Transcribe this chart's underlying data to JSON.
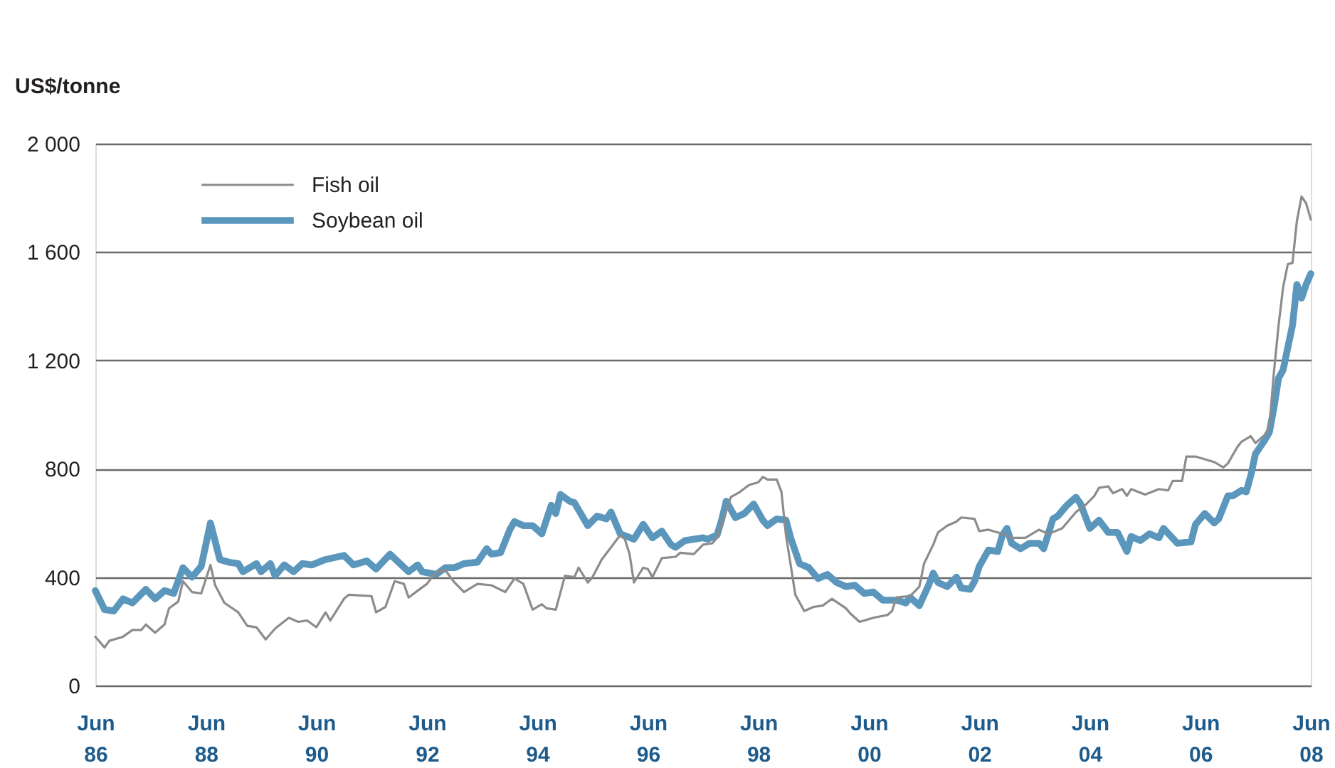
{
  "chart_data": {
    "type": "line",
    "ylabel": "US$/tonne",
    "xlim": [
      "1986-06",
      "2008-06"
    ],
    "xticks": [
      {
        "value": "1986-06",
        "label": "Jun\n86"
      },
      {
        "value": "1988-06",
        "label": "Jun\n88"
      },
      {
        "value": "1990-06",
        "label": "Jun\n90"
      },
      {
        "value": "1992-06",
        "label": "Jun\n92"
      },
      {
        "value": "1994-06",
        "label": "Jun\n94"
      },
      {
        "value": "1996-06",
        "label": "Jun\n96"
      },
      {
        "value": "1998-06",
        "label": "Jun\n98"
      },
      {
        "value": "2000-06",
        "label": "Jun\n00"
      },
      {
        "value": "2002-06",
        "label": "Jun\n02"
      },
      {
        "value": "2004-06",
        "label": "Jun\n04"
      },
      {
        "value": "2006-06",
        "label": "Jun\n06"
      },
      {
        "value": "2008-06",
        "label": "Jun\n08"
      }
    ],
    "ylim": [
      0,
      2000
    ],
    "yticks": [
      0,
      400,
      800,
      {
        "value": 1200,
        "label": "1 200"
      },
      {
        "value": 1600,
        "label": "1 600"
      },
      {
        "value": 2000,
        "label": "2 000"
      }
    ],
    "grid": "y",
    "legend": "top left",
    "series": [
      {
        "name": "Fish oil",
        "color": "#8c8c8c",
        "x": [
          "1986-06",
          "1986-08",
          "1986-09",
          "1986-12",
          "1987-02",
          "1987-04",
          "1987-05",
          "1987-07",
          "1987-09",
          "1987-10",
          "1987-12",
          "1988-01",
          "1988-03",
          "1988-05",
          "1988-07",
          "1988-08",
          "1988-10",
          "1989-01",
          "1989-03",
          "1989-05",
          "1989-07",
          "1989-09",
          "1989-12",
          "1990-02",
          "1990-04",
          "1990-06",
          "1990-08",
          "1990-09",
          "1990-12",
          "1991-01",
          "1991-06",
          "1991-07",
          "1991-09",
          "1991-11",
          "1992-01",
          "1992-02",
          "1992-04",
          "1992-06",
          "1992-08",
          "1992-10",
          "1992-12",
          "1993-02",
          "1993-05",
          "1993-08",
          "1993-11",
          "1994-01",
          "1994-03",
          "1994-05",
          "1994-07",
          "1994-08",
          "1994-10",
          "1994-12",
          "1995-02",
          "1995-03",
          "1995-05",
          "1995-06",
          "1995-08",
          "1995-10",
          "1995-12",
          "1996-01",
          "1996-02",
          "1996-03",
          "1996-05",
          "1996-06",
          "1996-07",
          "1996-09",
          "1996-12",
          "1997-01",
          "1997-04",
          "1997-06",
          "1997-08",
          "1997-09",
          "1997-12",
          "1998-02",
          "1998-04",
          "1998-06",
          "1998-07",
          "1998-08",
          "1998-10",
          "1998-11",
          "1998-12",
          "1999-02",
          "1999-04",
          "1999-06",
          "1999-08",
          "1999-10",
          "2000-01",
          "2000-02",
          "2000-04",
          "2000-07",
          "2000-10",
          "2000-11",
          "2000-12",
          "2001-03",
          "2001-05",
          "2001-06",
          "2001-08",
          "2001-09",
          "2001-11",
          "2002-01",
          "2002-02",
          "2002-05",
          "2002-06",
          "2002-08",
          "2002-10",
          "2002-11",
          "2003-01",
          "2003-04",
          "2003-07",
          "2003-09",
          "2003-12",
          "2004-03",
          "2004-05",
          "2004-07",
          "2004-08",
          "2004-10",
          "2004-11",
          "2005-01",
          "2005-02",
          "2005-03",
          "2005-06",
          "2005-09",
          "2005-11",
          "2005-12",
          "2006-02",
          "2006-03",
          "2006-05",
          "2006-08",
          "2006-09",
          "2006-11",
          "2006-12",
          "2007-02",
          "2007-03",
          "2007-05",
          "2007-06",
          "2007-08",
          "2007-09",
          "2007-10",
          "2007-11",
          "2007-12",
          "2008-01",
          "2008-02",
          "2008-03",
          "2008-04",
          "2008-05",
          "2008-06"
        ],
        "values": [
          180,
          140,
          165,
          180,
          205,
          205,
          225,
          195,
          225,
          285,
          310,
          385,
          345,
          340,
          445,
          370,
          305,
          270,
          220,
          215,
          170,
          210,
          250,
          235,
          240,
          215,
          270,
          240,
          320,
          335,
          330,
          270,
          290,
          385,
          375,
          325,
          350,
          375,
          420,
          425,
          380,
          345,
          375,
          370,
          345,
          395,
          375,
          280,
          300,
          285,
          280,
          405,
          400,
          435,
          380,
          400,
          465,
          510,
          555,
          540,
          485,
          380,
          435,
          430,
          400,
          470,
          475,
          490,
          485,
          520,
          525,
          545,
          695,
          715,
          740,
          750,
          770,
          760,
          760,
          715,
          555,
          335,
          275,
          290,
          295,
          320,
          285,
          265,
          235,
          250,
          260,
          275,
          325,
          330,
          365,
          450,
          520,
          565,
          590,
          605,
          620,
          615,
          570,
          575,
          565,
          560,
          545,
          545,
          575,
          560,
          580,
          640,
          665,
          700,
          730,
          735,
          710,
          725,
          700,
          725,
          705,
          725,
          720,
          755,
          755,
          845,
          845,
          830,
          825,
          805,
          820,
          880,
          900,
          920,
          895,
          925,
          955,
          1155,
          1330,
          1470,
          1555,
          1560,
          1715,
          1805,
          1780,
          1720
        ]
      },
      {
        "name": "Soybean oil",
        "color": "#5b96bd",
        "x": [
          "1986-06",
          "1986-08",
          "1986-10",
          "1986-12",
          "1987-02",
          "1987-05",
          "1987-07",
          "1987-09",
          "1987-11",
          "1988-01",
          "1988-03",
          "1988-05",
          "1988-07",
          "1988-09",
          "1988-11",
          "1989-01",
          "1989-02",
          "1989-05",
          "1989-06",
          "1989-08",
          "1989-09",
          "1989-11",
          "1990-01",
          "1990-03",
          "1990-05",
          "1990-08",
          "1990-12",
          "1991-02",
          "1991-05",
          "1991-07",
          "1991-10",
          "1992-02",
          "1992-04",
          "1992-05",
          "1992-08",
          "1992-10",
          "1992-12",
          "1993-02",
          "1993-05",
          "1993-07",
          "1993-08",
          "1993-10",
          "1993-12",
          "1994-01",
          "1994-03",
          "1994-05",
          "1994-07",
          "1994-09",
          "1994-10",
          "1994-11",
          "1995-01",
          "1995-02",
          "1995-05",
          "1995-07",
          "1995-09",
          "1995-10",
          "1995-12",
          "1996-03",
          "1996-05",
          "1996-07",
          "1996-09",
          "1996-11",
          "1996-12",
          "1997-02",
          "1997-04",
          "1997-06",
          "1997-07",
          "1997-09",
          "1997-10",
          "1997-11",
          "1998-01",
          "1998-03",
          "1998-05",
          "1998-07",
          "1998-08",
          "1998-10",
          "1998-12",
          "1999-01",
          "1999-03",
          "1999-05",
          "1999-07",
          "1999-09",
          "1999-11",
          "2000-01",
          "2000-03",
          "2000-05",
          "2000-07",
          "2000-09",
          "2000-12",
          "2001-02",
          "2001-03",
          "2001-05",
          "2001-07",
          "2001-08",
          "2001-09",
          "2001-11",
          "2002-01",
          "2002-02",
          "2002-04",
          "2002-05",
          "2002-06",
          "2002-08",
          "2002-10",
          "2002-11",
          "2002-12",
          "2003-01",
          "2003-03",
          "2003-05",
          "2003-07",
          "2003-08",
          "2003-10",
          "2003-11",
          "2004-01",
          "2004-03",
          "2004-04",
          "2004-06",
          "2004-08",
          "2004-10",
          "2004-12",
          "2005-02",
          "2005-03",
          "2005-05",
          "2005-07",
          "2005-09",
          "2005-10",
          "2006-01",
          "2006-04",
          "2006-05",
          "2006-07",
          "2006-09",
          "2006-10",
          "2006-12",
          "2007-01",
          "2007-03",
          "2007-04",
          "2007-05",
          "2007-06",
          "2007-08",
          "2007-09",
          "2007-10",
          "2007-11",
          "2007-12",
          "2008-02",
          "2008-03",
          "2008-04",
          "2008-05",
          "2008-06"
        ],
        "values": [
          350,
          280,
          275,
          320,
          305,
          355,
          320,
          350,
          340,
          435,
          400,
          440,
          600,
          465,
          455,
          450,
          420,
          450,
          420,
          450,
          405,
          445,
          420,
          450,
          445,
          465,
          480,
          445,
          460,
          430,
          485,
          420,
          445,
          420,
          410,
          435,
          435,
          450,
          455,
          505,
          485,
          490,
          575,
          605,
          590,
          590,
          560,
          665,
          635,
          705,
          680,
          675,
          590,
          625,
          615,
          640,
          560,
          540,
          595,
          545,
          570,
          520,
          510,
          535,
          540,
          545,
          540,
          555,
          610,
          680,
          620,
          635,
          670,
          610,
          590,
          615,
          610,
          545,
          450,
          435,
          395,
          410,
          380,
          365,
          370,
          340,
          345,
          315,
          315,
          305,
          325,
          295,
          370,
          415,
          380,
          365,
          400,
          360,
          355,
          385,
          440,
          500,
          495,
          555,
          580,
          525,
          505,
          525,
          525,
          505,
          615,
          625,
          665,
          695,
          670,
          580,
          610,
          565,
          565,
          495,
          550,
          535,
          560,
          545,
          580,
          525,
          530,
          595,
          635,
          600,
          615,
          700,
          700,
          720,
          715,
          775,
          855,
          905,
          935,
          1025,
          1135,
          1165,
          1330,
          1480,
          1430,
          1480,
          1520
        ]
      }
    ]
  }
}
